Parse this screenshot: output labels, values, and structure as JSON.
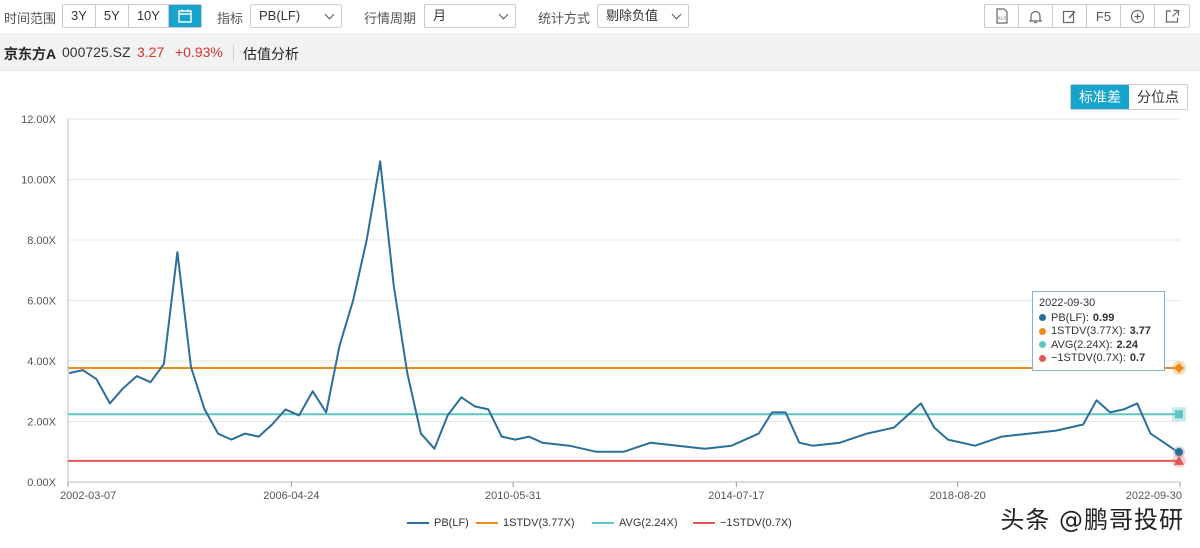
{
  "toolbar": {
    "time_range_label": "时间范围",
    "range_buttons": [
      "3Y",
      "5Y",
      "10Y"
    ],
    "indicator_label": "指标",
    "indicator_value": "PB(LF)",
    "period_label": "行情周期",
    "period_value": "月",
    "method_label": "统计方式",
    "method_value": "剔除负值",
    "icons": [
      "xls-icon",
      "bell-icon",
      "edit-icon",
      "f5-icon",
      "plus-circle-icon",
      "expand-icon"
    ],
    "f5_label": "F5",
    "xls_label": "XLS"
  },
  "stock": {
    "name": "京东方A",
    "code": "000725.SZ",
    "price": "3.27",
    "change": "+0.93%",
    "tab": "估值分析"
  },
  "mode": {
    "std_label": "标准差",
    "pct_label": "分位点"
  },
  "colors": {
    "pb": "#2b6f99",
    "plus1": "#f08a1e",
    "avg": "#5fc4c4",
    "minus1": "#e05858",
    "accent": "#16a4cc"
  },
  "tooltip": {
    "date": "2022-09-30",
    "rows": [
      {
        "label": "PB(LF):",
        "value": "0.99"
      },
      {
        "label": "1STDV(3.77X):",
        "value": "3.77"
      },
      {
        "label": "AVG(2.24X):",
        "value": "2.24"
      },
      {
        "label": "−1STDV(0.7X):",
        "value": "0.7"
      }
    ]
  },
  "chart_data": {
    "type": "line",
    "ylim": [
      0,
      12
    ],
    "y_ticks": [
      "0.00X",
      "2.00X",
      "4.00X",
      "6.00X",
      "8.00X",
      "10.00X",
      "12.00X"
    ],
    "x_ticks": [
      "2002-03-07",
      "2006-04-24",
      "2010-05-31",
      "2014-07-17",
      "2018-08-20",
      "2022-09-30"
    ],
    "x_range": [
      "2002-03-07",
      "2022-09-30"
    ],
    "grid": true,
    "legend": "bottom",
    "series": [
      {
        "name": "PB(LF)",
        "x": [
          "2002-03",
          "2002-06",
          "2002-09",
          "2002-12",
          "2003-03",
          "2003-06",
          "2003-09",
          "2003-12",
          "2004-03",
          "2004-06",
          "2004-09",
          "2004-12",
          "2005-03",
          "2005-06",
          "2005-09",
          "2005-12",
          "2006-03",
          "2006-06",
          "2006-09",
          "2006-12",
          "2007-03",
          "2007-06",
          "2007-09",
          "2007-12",
          "2008-03",
          "2008-06",
          "2008-09",
          "2008-12",
          "2009-03",
          "2009-06",
          "2009-09",
          "2009-12",
          "2010-03",
          "2010-06",
          "2010-09",
          "2010-12",
          "2011-06",
          "2011-12",
          "2012-06",
          "2012-12",
          "2013-06",
          "2013-12",
          "2014-06",
          "2014-12",
          "2015-03",
          "2015-06",
          "2015-09",
          "2015-12",
          "2016-06",
          "2016-12",
          "2017-06",
          "2017-12",
          "2018-03",
          "2018-06",
          "2018-12",
          "2019-06",
          "2019-12",
          "2020-06",
          "2020-12",
          "2021-03",
          "2021-06",
          "2021-09",
          "2021-12",
          "2022-03",
          "2022-06",
          "2022-09"
        ],
        "values": [
          3.6,
          3.7,
          3.4,
          2.6,
          3.1,
          3.5,
          3.3,
          3.9,
          7.6,
          3.8,
          2.4,
          1.6,
          1.4,
          1.6,
          1.5,
          1.9,
          2.4,
          2.2,
          3.0,
          2.3,
          4.5,
          6.0,
          8.0,
          10.6,
          6.5,
          3.6,
          1.6,
          1.1,
          2.2,
          2.8,
          2.5,
          2.4,
          1.5,
          1.4,
          1.5,
          1.3,
          1.2,
          1.0,
          1.0,
          1.3,
          1.2,
          1.1,
          1.2,
          1.6,
          2.3,
          2.3,
          1.3,
          1.2,
          1.3,
          1.6,
          1.8,
          2.6,
          1.8,
          1.4,
          1.2,
          1.5,
          1.6,
          1.7,
          1.9,
          2.7,
          2.3,
          2.4,
          2.6,
          1.6,
          1.3,
          0.99
        ]
      },
      {
        "name": "1STDV(3.77X)",
        "values": [
          3.77
        ]
      },
      {
        "name": "AVG(2.24X)",
        "values": [
          2.24
        ]
      },
      {
        "name": "−1STDV(0.7X)",
        "values": [
          0.7
        ]
      }
    ]
  },
  "watermark": "头条 @鹏哥投研"
}
